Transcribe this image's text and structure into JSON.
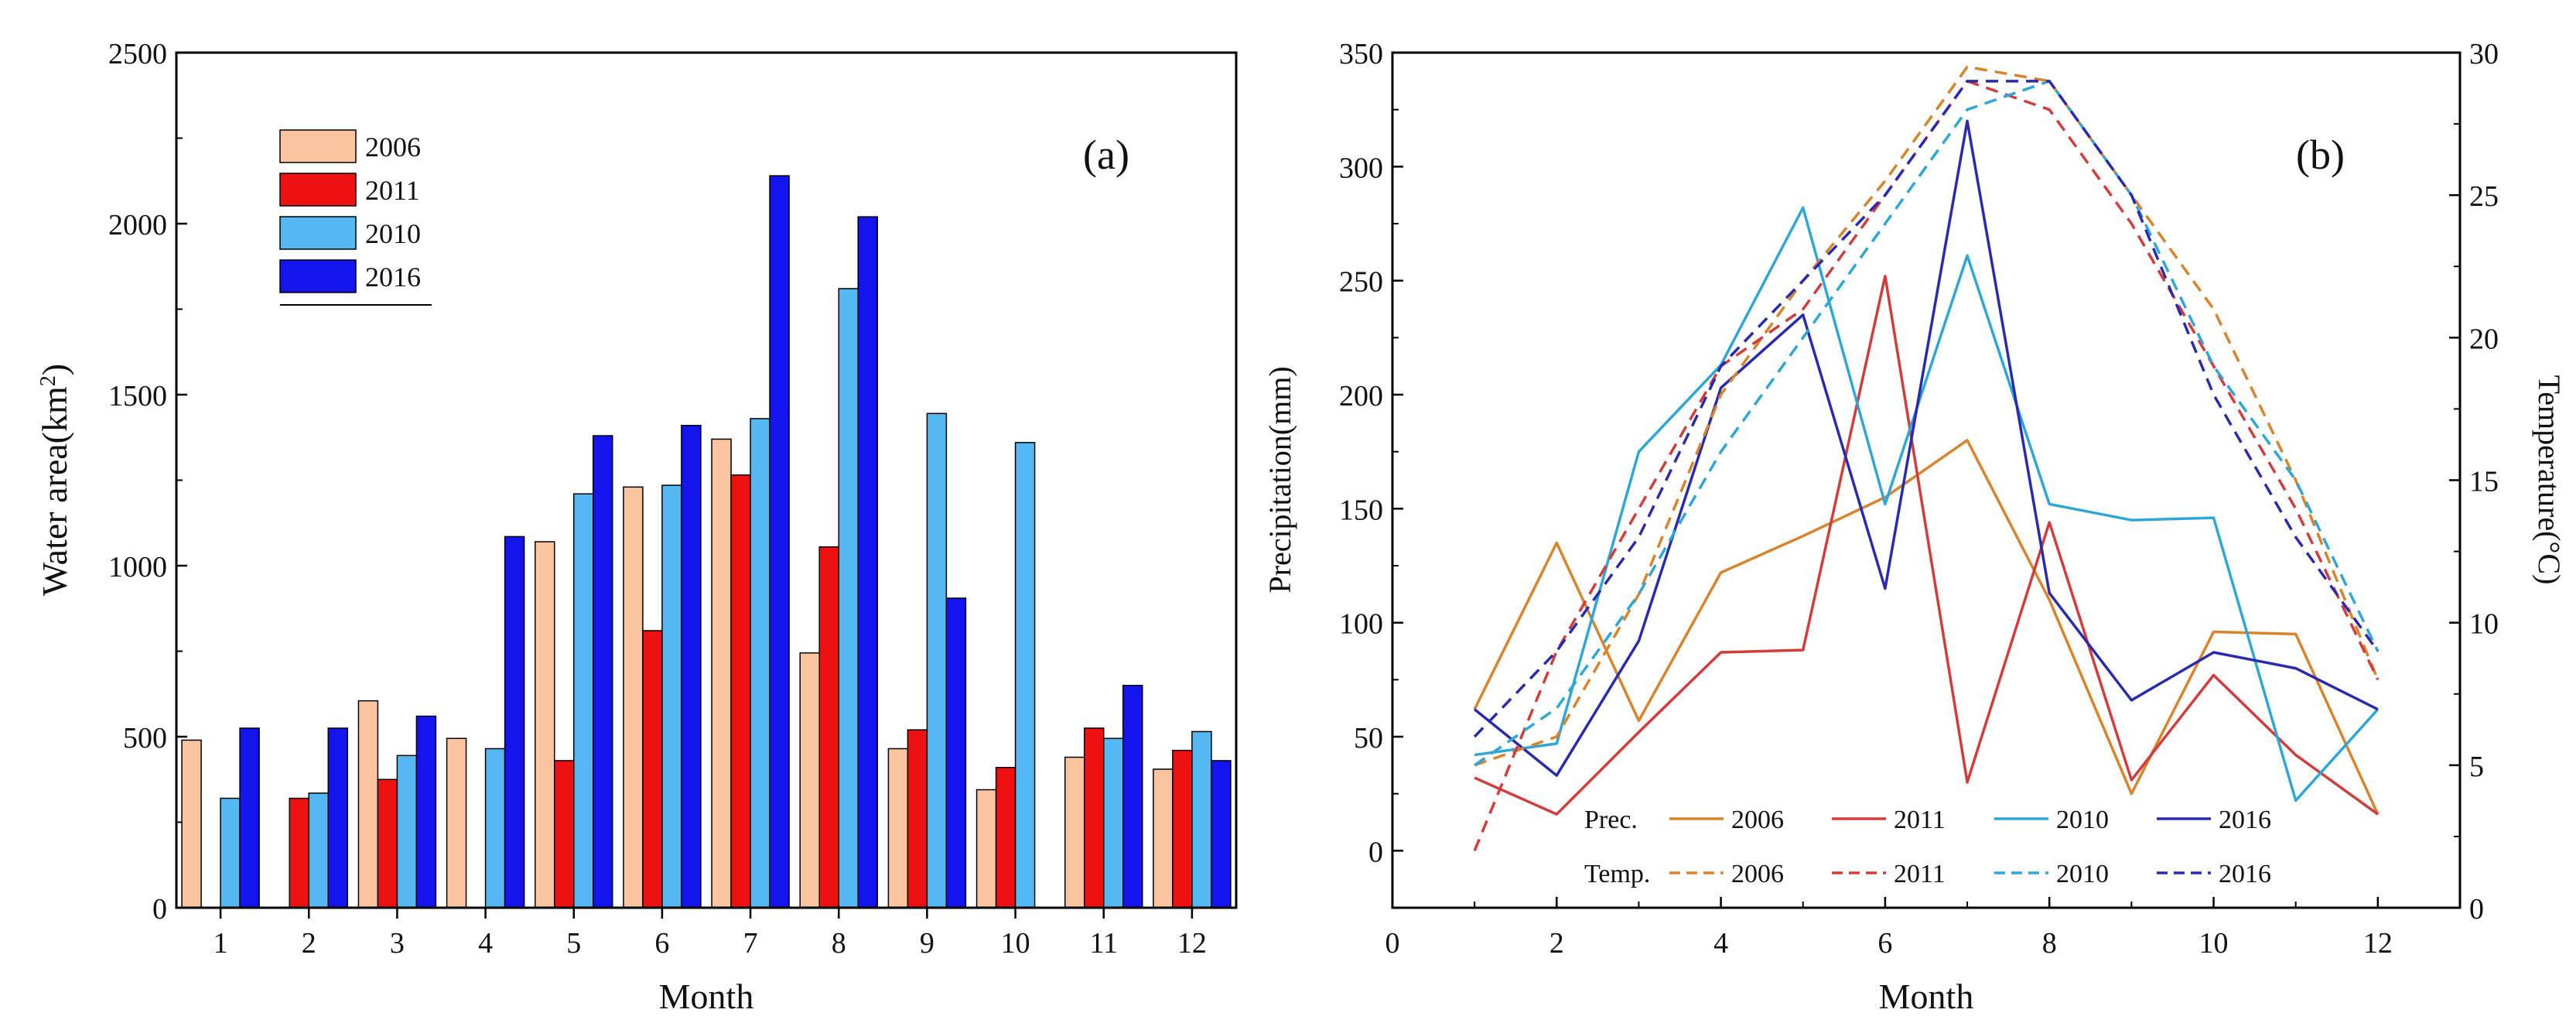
{
  "chart_data": [
    {
      "type": "bar",
      "panel_label": "(a)",
      "xlabel": "Month",
      "ylabel": "Water area(km²)",
      "ylabel_base": "Water area(km",
      "ylabel_sup": "2",
      "ylabel_close": ")",
      "categories": [
        "1",
        "2",
        "3",
        "4",
        "5",
        "6",
        "7",
        "8",
        "9",
        "10",
        "11",
        "12"
      ],
      "ylim": [
        0,
        2500
      ],
      "yticks": [
        "0",
        "500",
        "1000",
        "1500",
        "2000",
        "2500"
      ],
      "legend_position": "top-left",
      "series": [
        {
          "name": "2006",
          "color": "#f9c49e",
          "values": [
            490,
            null,
            605,
            495,
            1070,
            1230,
            1370,
            745,
            465,
            345,
            440,
            405
          ]
        },
        {
          "name": "2011",
          "color": "#ee1111",
          "values": [
            null,
            320,
            375,
            null,
            430,
            810,
            1265,
            1055,
            520,
            410,
            525,
            460
          ]
        },
        {
          "name": "2010",
          "color": "#55b8f2",
          "values": [
            320,
            335,
            445,
            465,
            1210,
            1235,
            1430,
            1810,
            1445,
            1360,
            495,
            515
          ]
        },
        {
          "name": "2016",
          "color": "#1414ee",
          "values": [
            525,
            525,
            560,
            1085,
            1380,
            1410,
            2140,
            2020,
            905,
            null,
            650,
            430
          ]
        }
      ]
    },
    {
      "type": "line",
      "panel_label": "(b)",
      "xlabel": "Month",
      "ylabel_left": "Precipitation(mm)",
      "ylabel_right": "Temperature(°C)",
      "xlim": [
        0,
        13
      ],
      "xticks": [
        "0",
        "2",
        "4",
        "6",
        "8",
        "10",
        "12"
      ],
      "ylim_left": [
        -25,
        350
      ],
      "yticks_left": [
        "0",
        "50",
        "100",
        "150",
        "200",
        "250",
        "300",
        "350"
      ],
      "ylim_right": [
        0,
        30
      ],
      "yticks_right": [
        "0",
        "5",
        "10",
        "15",
        "20",
        "25",
        "30"
      ],
      "legend": {
        "prec_label": "Prec.",
        "temp_label": "Temp.",
        "position": "bottom-center"
      },
      "x": [
        1,
        2,
        3,
        4,
        5,
        6,
        7,
        8,
        9,
        10,
        11,
        12
      ],
      "precipitation": [
        {
          "name": "2006",
          "color": "#d9832a",
          "values": [
            62,
            135,
            57,
            122,
            138,
            155,
            180,
            110,
            25,
            96,
            95,
            16
          ]
        },
        {
          "name": "2011",
          "color": "#d43b3b",
          "values": [
            32,
            16,
            52,
            87,
            88,
            252,
            30,
            144,
            31,
            77,
            42,
            16
          ]
        },
        {
          "name": "2010",
          "color": "#2ea6d8",
          "values": [
            42,
            47,
            175,
            213,
            282,
            152,
            261,
            152,
            145,
            146,
            22,
            62
          ]
        },
        {
          "name": "2016",
          "color": "#2a2ab0",
          "values": [
            62,
            33,
            92,
            203,
            235,
            115,
            320,
            113,
            66,
            87,
            80,
            62
          ]
        }
      ],
      "temperature": [
        {
          "name": "2006",
          "color": "#d9832a",
          "values": [
            5,
            6,
            11,
            18,
            22,
            25.5,
            29.5,
            29,
            25,
            21,
            15,
            8
          ]
        },
        {
          "name": "2011",
          "color": "#d43b3b",
          "values": [
            2,
            9,
            14,
            19,
            21,
            25,
            29,
            28,
            24,
            19,
            14,
            8
          ]
        },
        {
          "name": "2010",
          "color": "#2ea6d8",
          "values": [
            5,
            7,
            11,
            16,
            20,
            24,
            28,
            29,
            25,
            19,
            15,
            9
          ]
        },
        {
          "name": "2016",
          "color": "#2a2ab0",
          "values": [
            6,
            9,
            13,
            19,
            22,
            25,
            29,
            29,
            25,
            18,
            13,
            9
          ]
        }
      ]
    }
  ]
}
